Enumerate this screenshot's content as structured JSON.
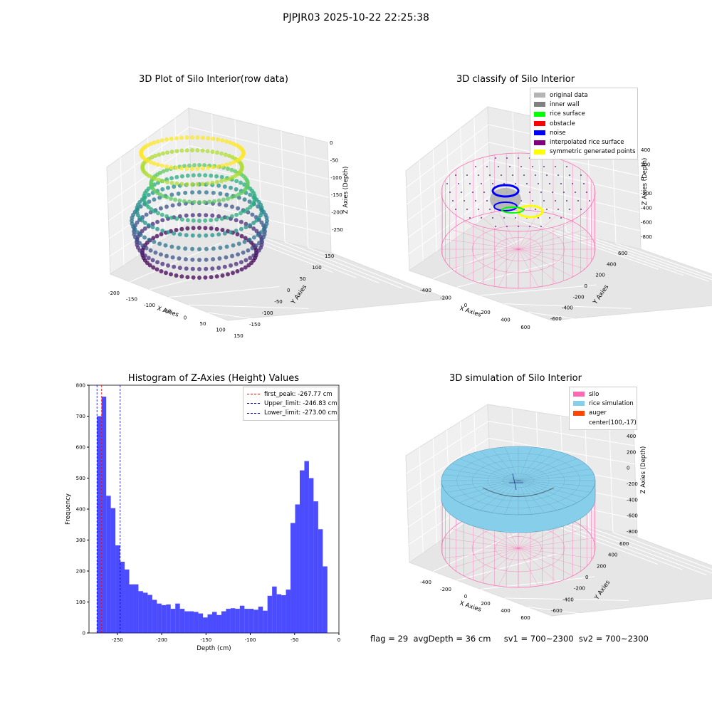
{
  "suptitle": "PJPJR03 2025-10-22 22:25:38",
  "footer": "flag = 29  avgDepth = 36 cm     sv1 = 700~2300  sv2 = 700~2300",
  "chart_data": [
    {
      "type": "scatter",
      "title": "3D Plot of Silo Interior(row data)",
      "xlabel": "X Axies",
      "ylabel": "Y Axies",
      "zlabel": "Z Axies (Depth)",
      "x_ticks": [
        "-200",
        "-150",
        "-100",
        "-50",
        "0",
        "50",
        "100",
        "150"
      ],
      "y_ticks": [
        "150",
        "100",
        "50",
        "0",
        "-50",
        "-100",
        "-150"
      ],
      "z_ticks": [
        "0",
        "-50",
        "-100",
        "-150",
        "-200",
        "-250"
      ],
      "colormap": "viridis"
    },
    {
      "type": "scatter",
      "title": "3D classify of Silo Interior",
      "xlabel": "X Axies",
      "ylabel": "Y Axies",
      "zlabel": "Z Axies (Depth)",
      "x_ticks": [
        "-400",
        "-200",
        "0",
        "200",
        "400",
        "600"
      ],
      "y_ticks": [
        "600",
        "400",
        "200",
        "0",
        "-200",
        "-400",
        "-600"
      ],
      "z_ticks": [
        "400",
        "200",
        "0",
        "-200",
        "-400",
        "-600",
        "-800"
      ],
      "legend": [
        {
          "label": "original data",
          "color": "#b4b4b4"
        },
        {
          "label": "inner wall",
          "color": "#808080"
        },
        {
          "label": "rice surface",
          "color": "#00ff00"
        },
        {
          "label": "obstacle",
          "color": "#ff0000"
        },
        {
          "label": "noise",
          "color": "#0000ff"
        },
        {
          "label": "interpolated rice surface",
          "color": "#800080"
        },
        {
          "label": "symmetric generated points",
          "color": "#ffff00"
        }
      ]
    },
    {
      "type": "bar",
      "title": "Histogram of Z-Axies (Height) Values",
      "xlabel": "Depth (cm)",
      "ylabel": "Frequency",
      "xlim": [
        -282,
        0
      ],
      "ylim": [
        0,
        800
      ],
      "x_ticks": [
        -250,
        -200,
        -150,
        -100,
        -50,
        0
      ],
      "y_ticks": [
        0,
        100,
        200,
        300,
        400,
        500,
        600,
        700,
        800
      ],
      "bin_start": -273,
      "bin_width": 5.2,
      "values": [
        700,
        763,
        443,
        403,
        283,
        230,
        205,
        157,
        157,
        135,
        130,
        123,
        107,
        95,
        90,
        92,
        78,
        95,
        78,
        70,
        70,
        68,
        63,
        50,
        60,
        68,
        58,
        70,
        78,
        80,
        78,
        88,
        78,
        78,
        75,
        85,
        72,
        120,
        150,
        125,
        122,
        140,
        355,
        415,
        525,
        555,
        500,
        425,
        335,
        215
      ],
      "bar_color": "#0000ff",
      "vlines": [
        {
          "label": "first_peak: -267.77 cm",
          "x": -267.77,
          "color": "#ff0000"
        },
        {
          "label": "Upper_limit: -246.83 cm",
          "x": -246.83,
          "color": "#0000cc"
        },
        {
          "label": "Lower_limit: -273.00 cm",
          "x": -273.0,
          "color": "#0000cc"
        }
      ]
    },
    {
      "type": "scatter",
      "title": "3D simulation of Silo Interior",
      "xlabel": "X Axies",
      "ylabel": "Y Axies",
      "zlabel": "Z Axies (Depth)",
      "x_ticks": [
        "-400",
        "-200",
        "0",
        "200",
        "400",
        "600"
      ],
      "y_ticks": [
        "600",
        "400",
        "200",
        "0",
        "-200",
        "-400",
        "-600"
      ],
      "z_ticks": [
        "400",
        "200",
        "0",
        "-200",
        "-400",
        "-600",
        "-800"
      ],
      "legend": [
        {
          "label": "silo",
          "color": "#ff69b4"
        },
        {
          "label": "rice simulation",
          "color": "#87ceeb"
        },
        {
          "label": "auger",
          "color": "#ff4500"
        },
        {
          "label": "center(100,-17)",
          "color": ""
        }
      ]
    }
  ]
}
